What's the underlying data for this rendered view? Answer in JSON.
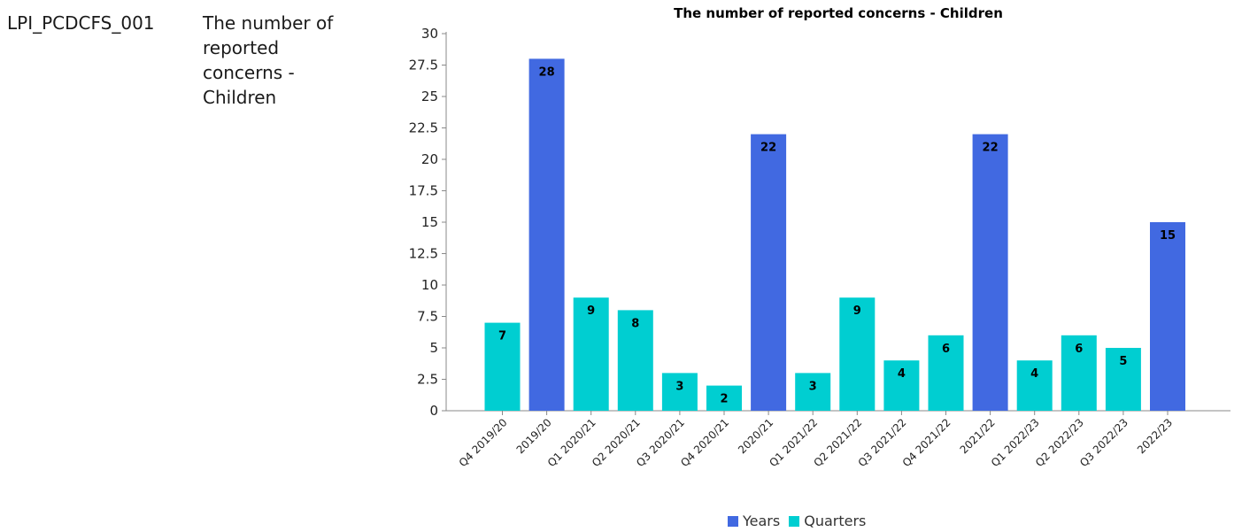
{
  "indicator": {
    "code": "LPI_PCDCFS_001",
    "description": "The number of reported concerns - Children"
  },
  "colors": {
    "years": "#4169E1",
    "quarters": "#00CED1"
  },
  "chart_data": {
    "type": "bar",
    "title": "The number of reported concerns - Children",
    "xlabel": "",
    "ylabel": "",
    "ylim": [
      0,
      30
    ],
    "yticks": [
      "0",
      "2.5",
      "5",
      "7.5",
      "10",
      "12.5",
      "15",
      "17.5",
      "20",
      "22.5",
      "25",
      "27.5",
      "30"
    ],
    "categories": [
      "Q4 2019/20",
      "2019/20",
      "Q1 2020/21",
      "Q2 2020/21",
      "Q3 2020/21",
      "Q4 2020/21",
      "2020/21",
      "Q1 2021/22",
      "Q2 2021/22",
      "Q3 2021/22",
      "Q4 2021/22",
      "2021/22",
      "Q1 2022/23",
      "Q2 2022/23",
      "Q3 2022/23",
      "2022/23"
    ],
    "values": [
      7,
      28,
      9,
      8,
      3,
      2,
      22,
      3,
      9,
      4,
      6,
      22,
      4,
      6,
      5,
      15
    ],
    "series_of_bar": [
      "Quarters",
      "Years",
      "Quarters",
      "Quarters",
      "Quarters",
      "Quarters",
      "Years",
      "Quarters",
      "Quarters",
      "Quarters",
      "Quarters",
      "Years",
      "Quarters",
      "Quarters",
      "Quarters",
      "Years"
    ],
    "legend": [
      {
        "name": "Years",
        "color": "#4169E1"
      },
      {
        "name": "Quarters",
        "color": "#00CED1"
      }
    ],
    "legend_position": "bottom",
    "grid": false
  }
}
